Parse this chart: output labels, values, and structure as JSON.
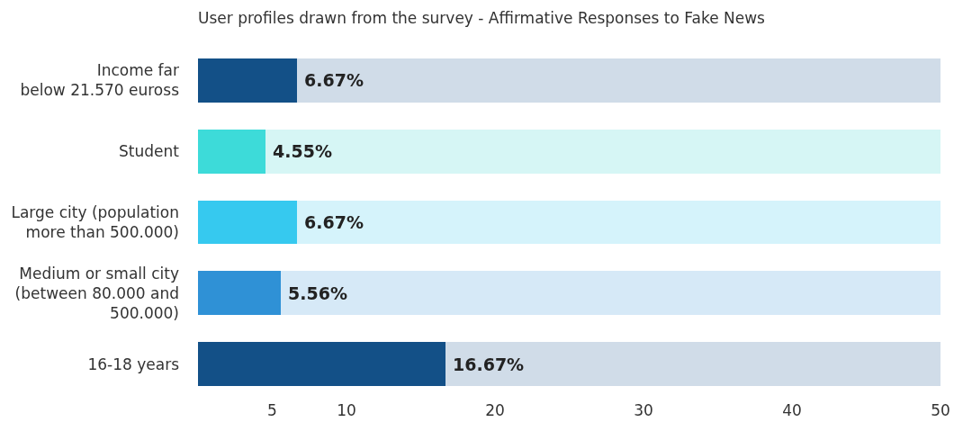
{
  "chart_data": {
    "type": "bar",
    "orientation": "horizontal",
    "stacked": true,
    "title": "User profiles drawn from the survey - Affirmative Responses to Fake News",
    "categories": [
      "Income far\nbelow 21.570 euross",
      "Student",
      "Large city (population\nmore than 500.000)",
      "Medium or small city\n(between 80.000 and\n500.000)",
      "16-18 years"
    ],
    "series": [
      {
        "colors": [
          "#135087",
          "#3ddbd9",
          "#36c9ef",
          "#2f91d6",
          "#135087"
        ],
        "values": [
          6.67,
          4.55,
          6.67,
          5.56,
          16.67
        ],
        "value_labels": [
          "6.67%",
          "4.55%",
          "6.67%",
          "5.56%",
          "16.67%"
        ]
      },
      {
        "colors": [
          "#d0dce8",
          "#d6f6f5",
          "#d5f3fb",
          "#d6e9f7",
          "#d0dce8"
        ],
        "values": [
          43.33,
          45.45,
          43.33,
          44.44,
          33.33
        ]
      }
    ],
    "xlim": [
      0,
      50
    ],
    "xticks": [
      5,
      10,
      20,
      30,
      40,
      50
    ]
  }
}
